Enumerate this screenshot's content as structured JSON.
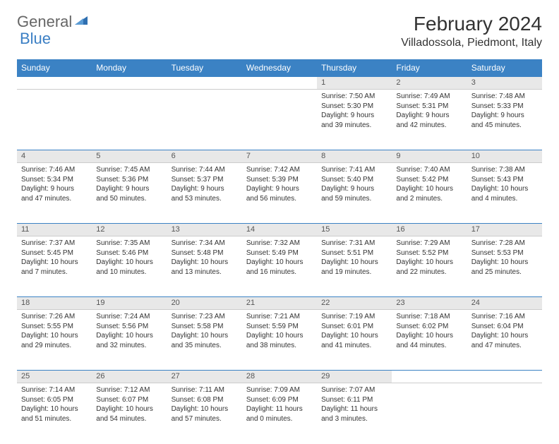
{
  "logo": {
    "text1": "General",
    "text2": "Blue"
  },
  "title": "February 2024",
  "location": "Villadossola, Piedmont, Italy",
  "colors": {
    "header_bg": "#3b82c4",
    "header_fg": "#ffffff",
    "daynum_bg": "#e8e8e8",
    "daynum_border_top": "#3b82c4",
    "text": "#333333",
    "logo_gray": "#666666",
    "logo_blue": "#3b7fc4"
  },
  "day_headers": [
    "Sunday",
    "Monday",
    "Tuesday",
    "Wednesday",
    "Thursday",
    "Friday",
    "Saturday"
  ],
  "weeks": [
    [
      {
        "n": "",
        "lines": []
      },
      {
        "n": "",
        "lines": []
      },
      {
        "n": "",
        "lines": []
      },
      {
        "n": "",
        "lines": []
      },
      {
        "n": "1",
        "lines": [
          "Sunrise: 7:50 AM",
          "Sunset: 5:30 PM",
          "Daylight: 9 hours",
          "and 39 minutes."
        ]
      },
      {
        "n": "2",
        "lines": [
          "Sunrise: 7:49 AM",
          "Sunset: 5:31 PM",
          "Daylight: 9 hours",
          "and 42 minutes."
        ]
      },
      {
        "n": "3",
        "lines": [
          "Sunrise: 7:48 AM",
          "Sunset: 5:33 PM",
          "Daylight: 9 hours",
          "and 45 minutes."
        ]
      }
    ],
    [
      {
        "n": "4",
        "lines": [
          "Sunrise: 7:46 AM",
          "Sunset: 5:34 PM",
          "Daylight: 9 hours",
          "and 47 minutes."
        ]
      },
      {
        "n": "5",
        "lines": [
          "Sunrise: 7:45 AM",
          "Sunset: 5:36 PM",
          "Daylight: 9 hours",
          "and 50 minutes."
        ]
      },
      {
        "n": "6",
        "lines": [
          "Sunrise: 7:44 AM",
          "Sunset: 5:37 PM",
          "Daylight: 9 hours",
          "and 53 minutes."
        ]
      },
      {
        "n": "7",
        "lines": [
          "Sunrise: 7:42 AM",
          "Sunset: 5:39 PM",
          "Daylight: 9 hours",
          "and 56 minutes."
        ]
      },
      {
        "n": "8",
        "lines": [
          "Sunrise: 7:41 AM",
          "Sunset: 5:40 PM",
          "Daylight: 9 hours",
          "and 59 minutes."
        ]
      },
      {
        "n": "9",
        "lines": [
          "Sunrise: 7:40 AM",
          "Sunset: 5:42 PM",
          "Daylight: 10 hours",
          "and 2 minutes."
        ]
      },
      {
        "n": "10",
        "lines": [
          "Sunrise: 7:38 AM",
          "Sunset: 5:43 PM",
          "Daylight: 10 hours",
          "and 4 minutes."
        ]
      }
    ],
    [
      {
        "n": "11",
        "lines": [
          "Sunrise: 7:37 AM",
          "Sunset: 5:45 PM",
          "Daylight: 10 hours",
          "and 7 minutes."
        ]
      },
      {
        "n": "12",
        "lines": [
          "Sunrise: 7:35 AM",
          "Sunset: 5:46 PM",
          "Daylight: 10 hours",
          "and 10 minutes."
        ]
      },
      {
        "n": "13",
        "lines": [
          "Sunrise: 7:34 AM",
          "Sunset: 5:48 PM",
          "Daylight: 10 hours",
          "and 13 minutes."
        ]
      },
      {
        "n": "14",
        "lines": [
          "Sunrise: 7:32 AM",
          "Sunset: 5:49 PM",
          "Daylight: 10 hours",
          "and 16 minutes."
        ]
      },
      {
        "n": "15",
        "lines": [
          "Sunrise: 7:31 AM",
          "Sunset: 5:51 PM",
          "Daylight: 10 hours",
          "and 19 minutes."
        ]
      },
      {
        "n": "16",
        "lines": [
          "Sunrise: 7:29 AM",
          "Sunset: 5:52 PM",
          "Daylight: 10 hours",
          "and 22 minutes."
        ]
      },
      {
        "n": "17",
        "lines": [
          "Sunrise: 7:28 AM",
          "Sunset: 5:53 PM",
          "Daylight: 10 hours",
          "and 25 minutes."
        ]
      }
    ],
    [
      {
        "n": "18",
        "lines": [
          "Sunrise: 7:26 AM",
          "Sunset: 5:55 PM",
          "Daylight: 10 hours",
          "and 29 minutes."
        ]
      },
      {
        "n": "19",
        "lines": [
          "Sunrise: 7:24 AM",
          "Sunset: 5:56 PM",
          "Daylight: 10 hours",
          "and 32 minutes."
        ]
      },
      {
        "n": "20",
        "lines": [
          "Sunrise: 7:23 AM",
          "Sunset: 5:58 PM",
          "Daylight: 10 hours",
          "and 35 minutes."
        ]
      },
      {
        "n": "21",
        "lines": [
          "Sunrise: 7:21 AM",
          "Sunset: 5:59 PM",
          "Daylight: 10 hours",
          "and 38 minutes."
        ]
      },
      {
        "n": "22",
        "lines": [
          "Sunrise: 7:19 AM",
          "Sunset: 6:01 PM",
          "Daylight: 10 hours",
          "and 41 minutes."
        ]
      },
      {
        "n": "23",
        "lines": [
          "Sunrise: 7:18 AM",
          "Sunset: 6:02 PM",
          "Daylight: 10 hours",
          "and 44 minutes."
        ]
      },
      {
        "n": "24",
        "lines": [
          "Sunrise: 7:16 AM",
          "Sunset: 6:04 PM",
          "Daylight: 10 hours",
          "and 47 minutes."
        ]
      }
    ],
    [
      {
        "n": "25",
        "lines": [
          "Sunrise: 7:14 AM",
          "Sunset: 6:05 PM",
          "Daylight: 10 hours",
          "and 51 minutes."
        ]
      },
      {
        "n": "26",
        "lines": [
          "Sunrise: 7:12 AM",
          "Sunset: 6:07 PM",
          "Daylight: 10 hours",
          "and 54 minutes."
        ]
      },
      {
        "n": "27",
        "lines": [
          "Sunrise: 7:11 AM",
          "Sunset: 6:08 PM",
          "Daylight: 10 hours",
          "and 57 minutes."
        ]
      },
      {
        "n": "28",
        "lines": [
          "Sunrise: 7:09 AM",
          "Sunset: 6:09 PM",
          "Daylight: 11 hours",
          "and 0 minutes."
        ]
      },
      {
        "n": "29",
        "lines": [
          "Sunrise: 7:07 AM",
          "Sunset: 6:11 PM",
          "Daylight: 11 hours",
          "and 3 minutes."
        ]
      },
      {
        "n": "",
        "lines": []
      },
      {
        "n": "",
        "lines": []
      }
    ]
  ]
}
